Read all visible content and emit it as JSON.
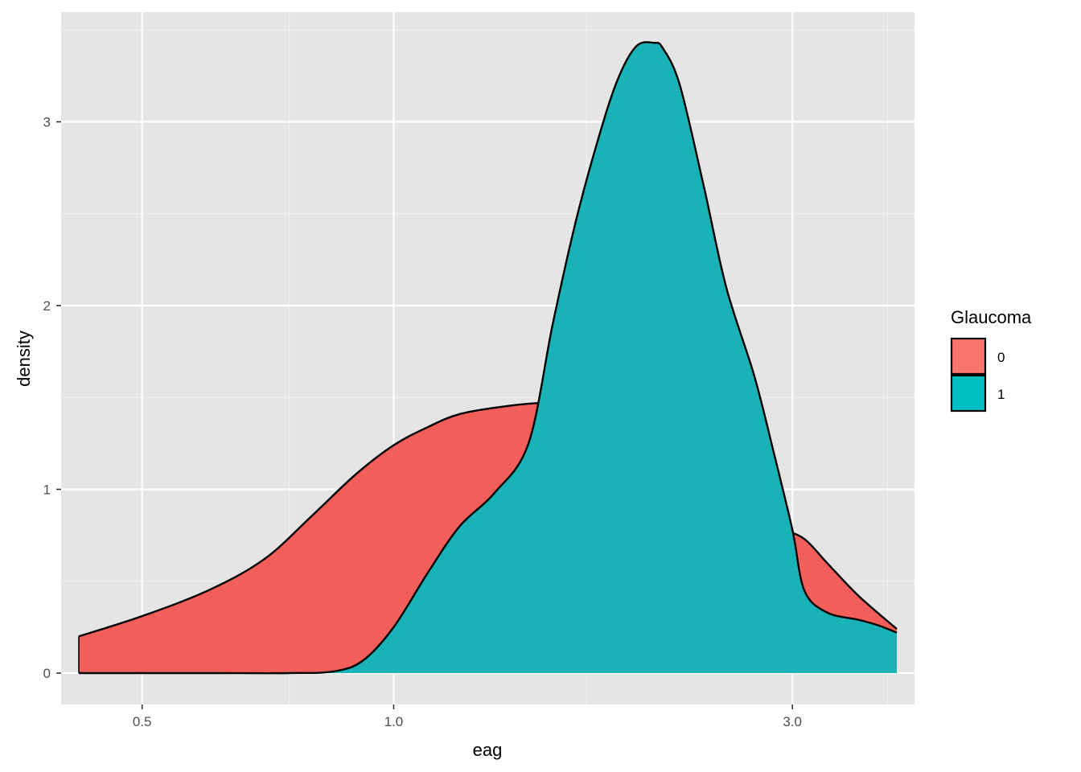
{
  "chart_data": {
    "type": "area",
    "subtype": "overlapping density",
    "xlabel": "eag",
    "ylabel": "density",
    "x_scale": "log10",
    "xlim": [
      0.4,
      4.2
    ],
    "ylim": [
      0,
      3.5
    ],
    "x_ticks": [
      0.5,
      1.0,
      3.0
    ],
    "x_tick_labels": [
      "0.5",
      "1.0",
      "3.0"
    ],
    "x_minor_gridlines": [
      0.75,
      1.7,
      3.9
    ],
    "y_ticks": [
      0,
      1,
      2,
      3
    ],
    "y_tick_labels": [
      "0",
      "1",
      "2",
      "3"
    ],
    "grid": true,
    "background": "#e5e5e5",
    "legend": {
      "title": "Glaucoma",
      "position": "right",
      "entries": [
        {
          "label": "0",
          "color": "#f8766d"
        },
        {
          "label": "1",
          "color": "#00bfc4"
        }
      ]
    },
    "series": [
      {
        "name": "0",
        "color": "#f25e5a",
        "x": [
          0.42,
          0.5,
          0.6,
          0.7,
          0.8,
          0.9,
          1.0,
          1.1,
          1.2,
          1.35,
          1.5,
          1.65,
          1.75,
          1.9,
          2.1,
          2.3,
          2.5,
          2.7,
          2.9,
          3.1,
          3.3,
          3.6,
          4.0
        ],
        "values": [
          0.2,
          0.31,
          0.45,
          0.62,
          0.86,
          1.08,
          1.24,
          1.34,
          1.41,
          1.45,
          1.47,
          1.47,
          1.46,
          1.41,
          1.33,
          1.2,
          1.02,
          0.86,
          0.79,
          0.73,
          0.6,
          0.42,
          0.24
        ]
      },
      {
        "name": "1",
        "color": "#19b3b7",
        "x": [
          0.42,
          0.6,
          0.75,
          0.85,
          0.92,
          1.0,
          1.1,
          1.2,
          1.32,
          1.45,
          1.55,
          1.65,
          1.75,
          1.85,
          1.95,
          2.05,
          2.1,
          2.2,
          2.35,
          2.5,
          2.7,
          2.85,
          3.0,
          3.1,
          3.3,
          3.6,
          3.8,
          4.0
        ],
        "values": [
          0.0,
          0.0,
          0.0,
          0.01,
          0.07,
          0.25,
          0.55,
          0.8,
          0.98,
          1.25,
          1.9,
          2.45,
          2.88,
          3.22,
          3.41,
          3.43,
          3.4,
          3.2,
          2.65,
          2.1,
          1.62,
          1.2,
          0.78,
          0.45,
          0.33,
          0.29,
          0.26,
          0.22
        ]
      }
    ]
  }
}
